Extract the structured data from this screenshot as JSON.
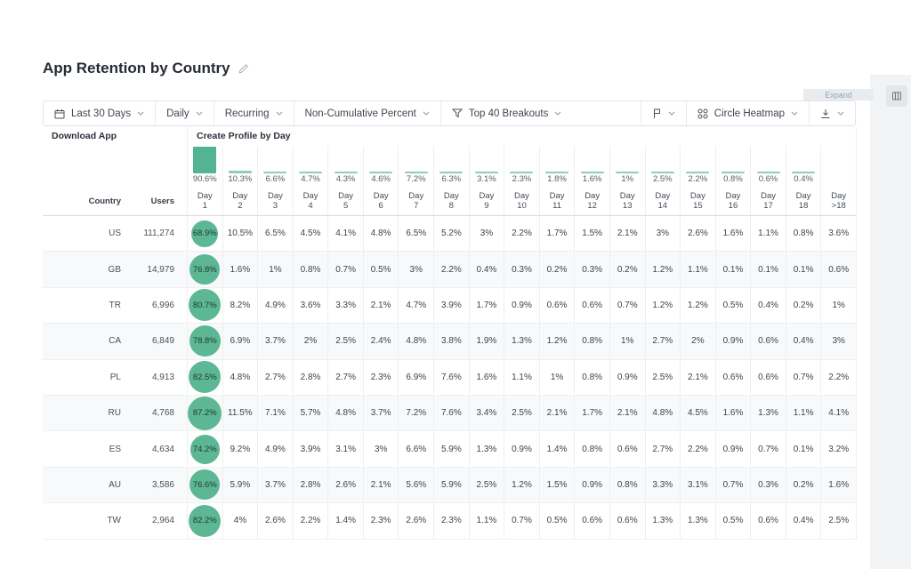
{
  "page": {
    "title": "App Retention by Country"
  },
  "controls": {
    "expand_label": "Expand",
    "toolbar": [
      {
        "label": "Last 30 Days",
        "icon": "calendar-icon"
      },
      {
        "label": "Daily"
      },
      {
        "label": "Recurring"
      },
      {
        "label": "Non-Cumulative Percent"
      },
      {
        "label": "Top 40 Breakouts",
        "icon": "funnel-icon"
      },
      {
        "label": "",
        "icon": "flag-icon"
      },
      {
        "label": "Circle Heatmap",
        "icon": "circle-grid-icon"
      },
      {
        "label": "",
        "icon": "download-icon"
      }
    ]
  },
  "table": {
    "section_left": "Download App",
    "section_right": "Create Profile by Day",
    "col_country": "Country",
    "col_users": "Users",
    "day_word": "Day",
    "day_columns": [
      "1",
      "2",
      "3",
      "4",
      "5",
      "6",
      "7",
      "8",
      "9",
      "10",
      "11",
      "12",
      "13",
      "14",
      "15",
      "16",
      "17",
      "18",
      ">18"
    ],
    "summary": {
      "values": [
        90.6,
        10.3,
        6.6,
        4.7,
        4.3,
        4.6,
        7.2,
        6.3,
        3.1,
        2.3,
        1.8,
        1.6,
        1,
        2.5,
        2.2,
        0.8,
        0.6,
        0.4,
        null
      ],
      "labels": [
        "90.6%",
        "10.3%",
        "6.6%",
        "4.7%",
        "4.3%",
        "4.6%",
        "7.2%",
        "6.3%",
        "3.1%",
        "2.3%",
        "1.8%",
        "1.6%",
        "1%",
        "2.5%",
        "2.2%",
        "0.8%",
        "0.6%",
        "0.4%",
        ""
      ]
    },
    "rows": [
      {
        "country": "US",
        "users": "111,274",
        "day1": "68.9%",
        "day1_value": 68.9,
        "cells": [
          "10.5%",
          "6.5%",
          "4.5%",
          "4.1%",
          "4.8%",
          "6.5%",
          "5.2%",
          "3%",
          "2.2%",
          "1.7%",
          "1.5%",
          "2.1%",
          "3%",
          "2.6%",
          "1.6%",
          "1.1%",
          "0.8%",
          "3.6%"
        ]
      },
      {
        "country": "GB",
        "users": "14,979",
        "day1": "76.8%",
        "day1_value": 76.8,
        "cells": [
          "1.6%",
          "1%",
          "0.8%",
          "0.7%",
          "0.5%",
          "3%",
          "2.2%",
          "0.4%",
          "0.3%",
          "0.2%",
          "0.3%",
          "0.2%",
          "1.2%",
          "1.1%",
          "0.1%",
          "0.1%",
          "0.1%",
          "0.6%"
        ]
      },
      {
        "country": "TR",
        "users": "6,996",
        "day1": "80.7%",
        "day1_value": 80.7,
        "cells": [
          "8.2%",
          "4.9%",
          "3.6%",
          "3.3%",
          "2.1%",
          "4.7%",
          "3.9%",
          "1.7%",
          "0.9%",
          "0.6%",
          "0.6%",
          "0.7%",
          "1.2%",
          "1.2%",
          "0.5%",
          "0.4%",
          "0.2%",
          "1%"
        ]
      },
      {
        "country": "CA",
        "users": "6,849",
        "day1": "78.8%",
        "day1_value": 78.8,
        "cells": [
          "6.9%",
          "3.7%",
          "2%",
          "2.5%",
          "2.4%",
          "4.8%",
          "3.8%",
          "1.9%",
          "1.3%",
          "1.2%",
          "0.8%",
          "1%",
          "2.7%",
          "2%",
          "0.9%",
          "0.6%",
          "0.4%",
          "3%"
        ]
      },
      {
        "country": "PL",
        "users": "4,913",
        "day1": "82.5%",
        "day1_value": 82.5,
        "cells": [
          "4.8%",
          "2.7%",
          "2.8%",
          "2.7%",
          "2.3%",
          "6.9%",
          "7.6%",
          "1.6%",
          "1.1%",
          "1%",
          "0.8%",
          "0.9%",
          "2.5%",
          "2.1%",
          "0.6%",
          "0.6%",
          "0.7%",
          "2.2%"
        ]
      },
      {
        "country": "RU",
        "users": "4,768",
        "day1": "87.2%",
        "day1_value": 87.2,
        "cells": [
          "11.5%",
          "7.1%",
          "5.7%",
          "4.8%",
          "3.7%",
          "7.2%",
          "7.6%",
          "3.4%",
          "2.5%",
          "2.1%",
          "1.7%",
          "2.1%",
          "4.8%",
          "4.5%",
          "1.6%",
          "1.3%",
          "1.1%",
          "4.1%"
        ]
      },
      {
        "country": "ES",
        "users": "4,634",
        "day1": "74.2%",
        "day1_value": 74.2,
        "cells": [
          "9.2%",
          "4.9%",
          "3.9%",
          "3.1%",
          "3%",
          "6.6%",
          "5.9%",
          "1.3%",
          "0.9%",
          "1.4%",
          "0.8%",
          "0.6%",
          "2.7%",
          "2.2%",
          "0.9%",
          "0.7%",
          "0.1%",
          "3.2%"
        ]
      },
      {
        "country": "AU",
        "users": "3,586",
        "day1": "76.6%",
        "day1_value": 76.6,
        "cells": [
          "5.9%",
          "3.7%",
          "2.8%",
          "2.6%",
          "2.1%",
          "5.6%",
          "5.9%",
          "2.5%",
          "1.2%",
          "1.5%",
          "0.9%",
          "0.8%",
          "3.3%",
          "3.1%",
          "0.7%",
          "0.3%",
          "0.2%",
          "1.6%"
        ]
      },
      {
        "country": "TW",
        "users": "2,964",
        "day1": "82.2%",
        "day1_value": 82.2,
        "cells": [
          "4%",
          "2.6%",
          "2.2%",
          "1.4%",
          "2.3%",
          "2.6%",
          "2.3%",
          "1.1%",
          "0.7%",
          "0.5%",
          "0.6%",
          "0.6%",
          "1.3%",
          "1.3%",
          "0.5%",
          "0.6%",
          "0.4%",
          "2.5%"
        ]
      }
    ]
  },
  "colors": {
    "accent_green": "#54B492",
    "bar_light": "#8CCFB1",
    "circle_green": "#5CB795"
  }
}
